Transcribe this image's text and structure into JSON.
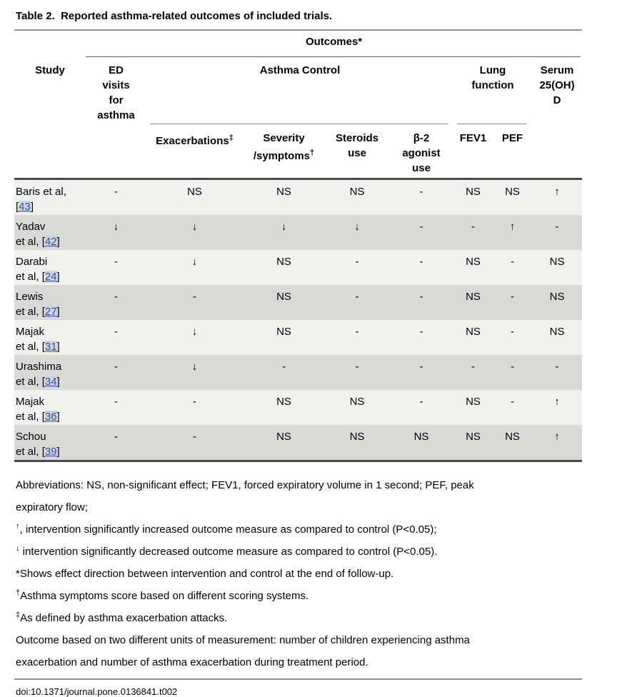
{
  "title": "Table 2.  Reported asthma-related outcomes of included trials.",
  "table": {
    "outcomes_header": "Outcomes*",
    "headers": {
      "study": "Study",
      "ed_visits": "ED\nvisits\nfor\nasthma",
      "asthma_control": "Asthma Control",
      "lung_function": "Lung\nfunction",
      "serum": "Serum\n25(OH)\nD",
      "exacerbations": {
        "label": "Exacerbations",
        "sup": "‡"
      },
      "severity": {
        "line1": "Severity",
        "line2": "/symptoms",
        "sup": "†"
      },
      "steroids": "Steroids\nuse",
      "beta2": "β-2\nagonist\nuse",
      "fev1": "FEV1",
      "pef": "PEF"
    },
    "refs": {
      "open": "[",
      "close": "]"
    },
    "rows": [
      {
        "n1": "Baris et al,",
        "n2": "",
        "ref": "43",
        "v": [
          "-",
          "NS",
          "NS",
          "NS",
          "-",
          "NS",
          "NS",
          "↑"
        ]
      },
      {
        "n1": "Yadav",
        "n2": "et al, ",
        "ref": "42",
        "v": [
          "↓",
          "↓",
          "↓",
          "↓",
          "-",
          "-",
          "↑",
          "-"
        ]
      },
      {
        "n1": "Darabi",
        "n2": "et al, ",
        "ref": "24",
        "v": [
          "-",
          "↓",
          "NS",
          "-",
          "-",
          "NS",
          "-",
          "NS"
        ]
      },
      {
        "n1": "Lewis",
        "n2": "et al, ",
        "ref": "27",
        "v": [
          "-",
          "-",
          "NS",
          "-",
          "-",
          "NS",
          "-",
          "NS"
        ]
      },
      {
        "n1": "Majak",
        "n2": "et al, ",
        "ref": "31",
        "v": [
          "-",
          "↓",
          "NS",
          "-",
          "-",
          "NS",
          "-",
          "NS"
        ]
      },
      {
        "n1": "Urashima",
        "n2": "et al, ",
        "ref": "34",
        "v": [
          "-",
          "↓",
          "-",
          "-",
          "-",
          "-",
          "-",
          "-"
        ]
      },
      {
        "n1": "Majak",
        "n2": "et al, ",
        "ref": "36",
        "v": [
          "-",
          "-",
          "NS",
          "NS",
          "-",
          "NS",
          "-",
          "↑"
        ]
      },
      {
        "n1": "Schou",
        "n2": "et al, ",
        "ref": "39",
        "v": [
          "-",
          "-",
          "NS",
          "NS",
          "NS",
          "NS",
          "NS",
          "↑"
        ]
      }
    ]
  },
  "footnotes": [
    {
      "sup": "",
      "text": "Abbreviations: NS, non-significant effect; FEV1, forced expiratory volume in 1 second; PEF, peak"
    },
    {
      "sup": "",
      "text": "expiratory flow;"
    },
    {
      "sup": "↑",
      "text": ", intervention significantly increased outcome measure as compared to control (P<0.05);"
    },
    {
      "sup": "↓",
      "text": " intervention significantly decreased outcome measure as compared to control (P<0.05)."
    },
    {
      "sup": "",
      "text": "*Shows effect direction between intervention and control at the end of follow-up."
    },
    {
      "sup": "†",
      "text": "Asthma symptoms score based on different scoring systems."
    },
    {
      "sup": "‡",
      "text": "As defined by asthma exacerbation attacks."
    },
    {
      "sup": "",
      "text": "Outcome based on two different units of measurement: number of children experiencing asthma"
    },
    {
      "sup": "",
      "text": "exacerbation and number of asthma exacerbation during treatment period."
    }
  ],
  "doi": "doi:10.1371/journal.pone.0136841.t002",
  "colors": {
    "row_light": "#f1f1ef",
    "row_dark": "#d9d9d7",
    "link_text": "#34519c",
    "link_highlight": "#cdd5e2",
    "rule_dark": "#4a4a4a",
    "rule_gray": "#919191"
  }
}
